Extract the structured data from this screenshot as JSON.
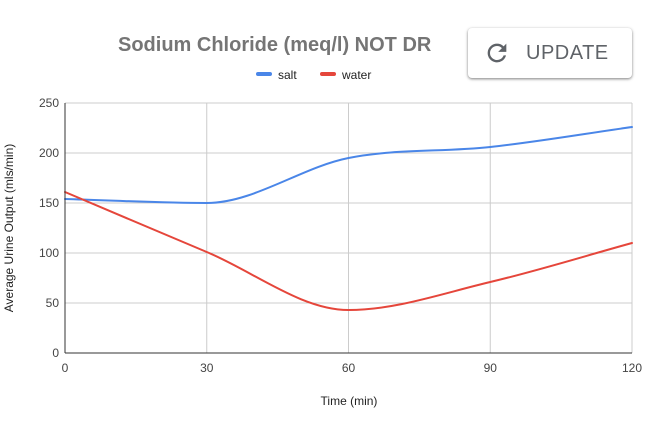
{
  "chart_data": {
    "type": "line",
    "title": "Sodium Chloride (meq/l) NOT DR",
    "xlabel": "Time (min)",
    "ylabel": "Average Urine Output (mls/min)",
    "xlim": [
      0,
      120
    ],
    "ylim": [
      0,
      250
    ],
    "xticks": [
      0,
      30,
      60,
      90,
      120
    ],
    "yticks": [
      0,
      50,
      100,
      150,
      200,
      250
    ],
    "grid": true,
    "legend_position": "top",
    "series": [
      {
        "name": "salt",
        "color": "#4a86e8",
        "x": [
          0,
          30,
          60,
          90,
          120
        ],
        "y": [
          154,
          150,
          195,
          206,
          226
        ]
      },
      {
        "name": "water",
        "color": "#e5463b",
        "x": [
          0,
          30,
          60,
          90,
          120
        ],
        "y": [
          161,
          101,
          43,
          71,
          110
        ]
      }
    ]
  },
  "update_button": {
    "label": "UPDATE",
    "icon": "refresh-icon"
  }
}
